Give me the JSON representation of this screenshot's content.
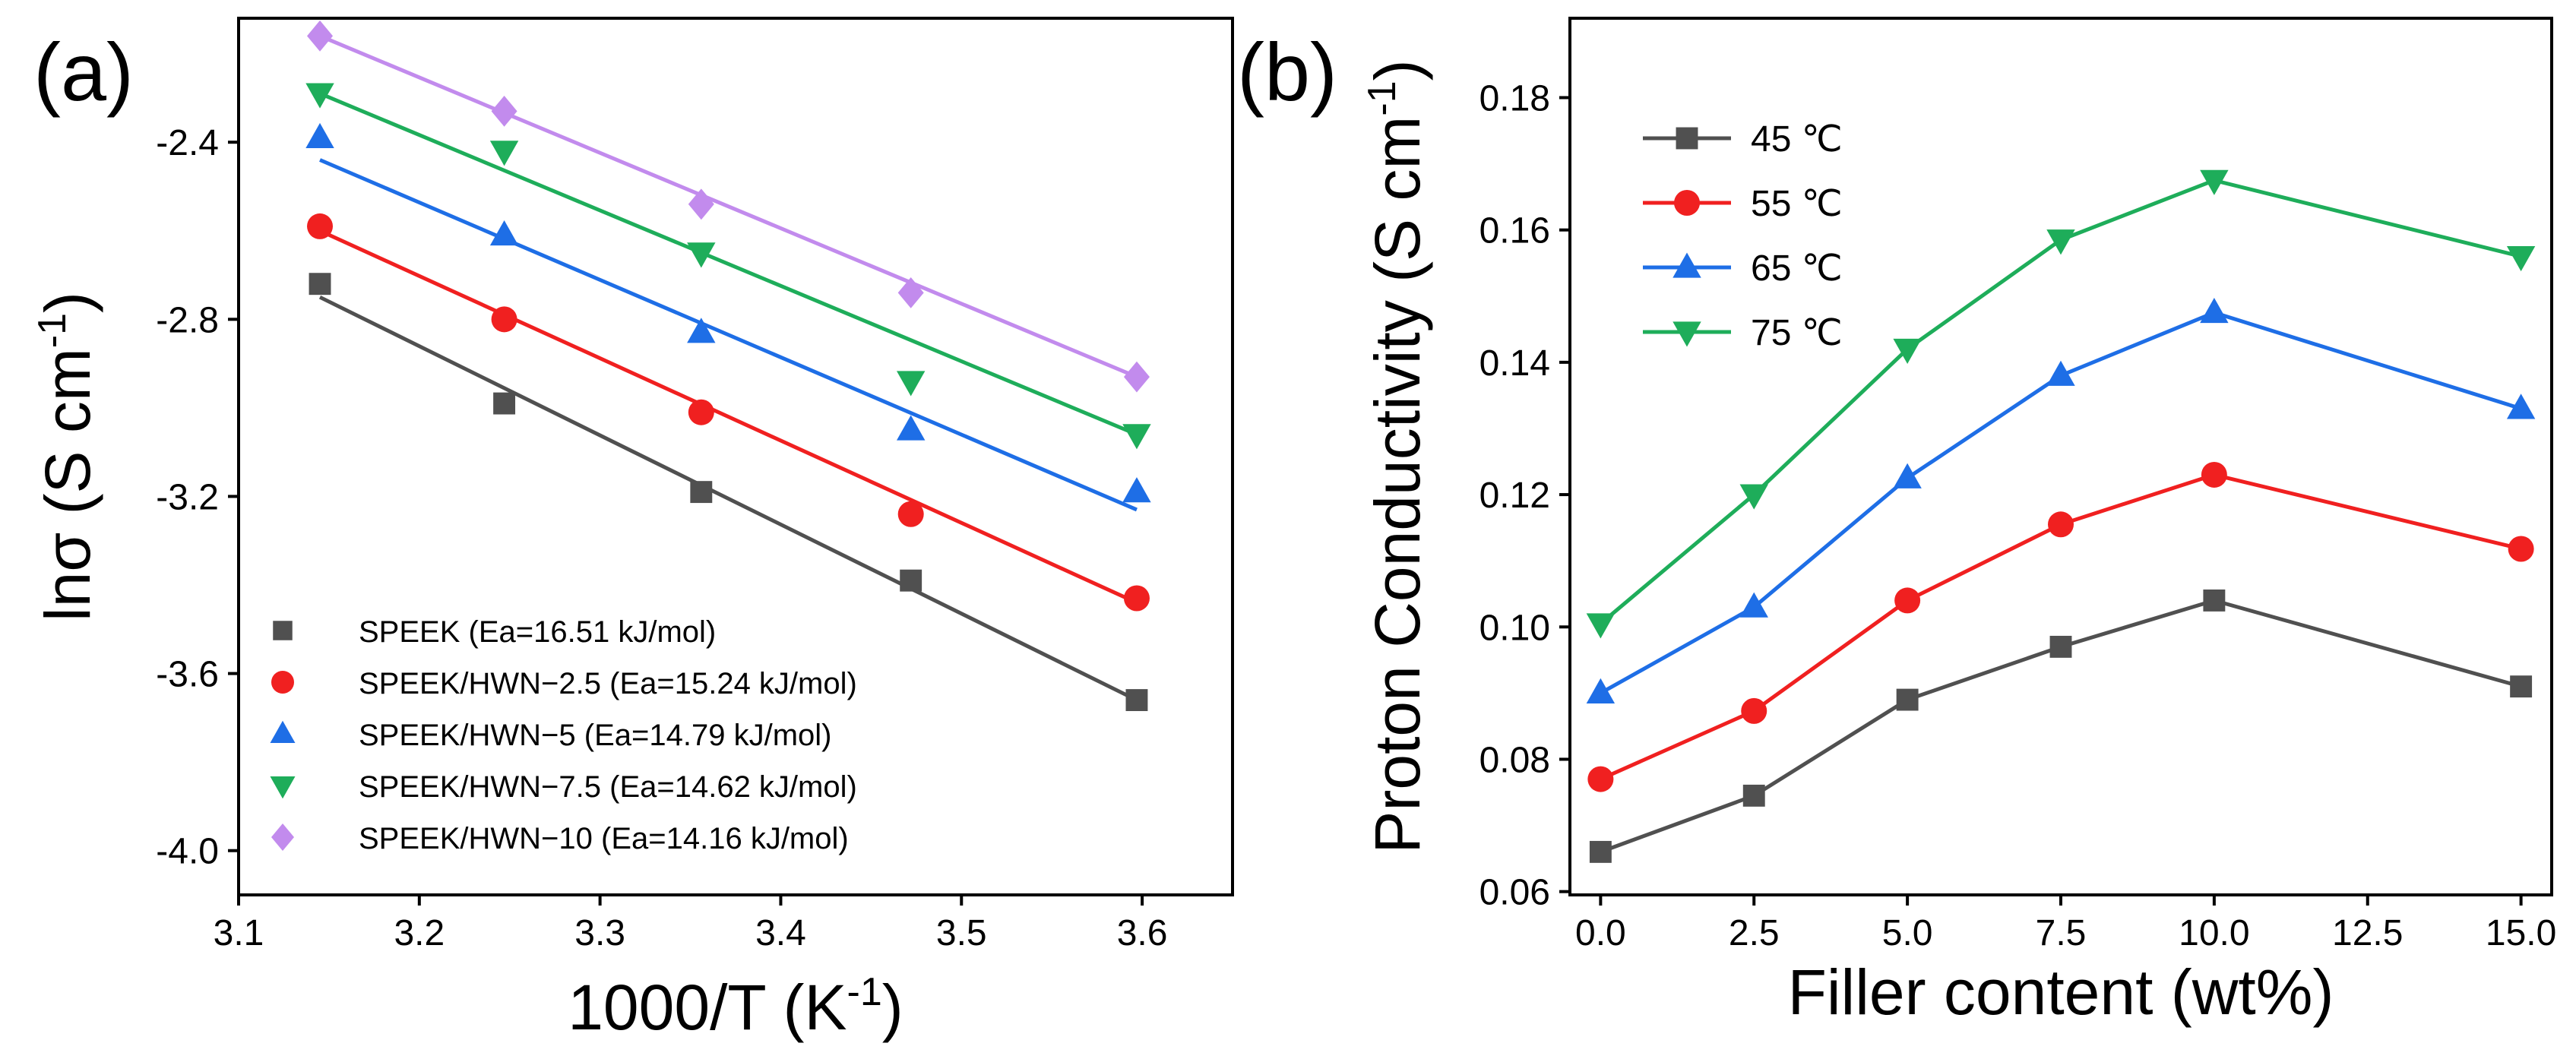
{
  "chart_data": [
    {
      "type": "scatter",
      "panel_label": "(a)",
      "title": "",
      "xlabel": {
        "main": "1000/T (K",
        "sup": "-1",
        "end": ")"
      },
      "ylabel": {
        "main": "lnσ (S cm",
        "sup": "-1",
        "end": ")"
      },
      "xlim": [
        3.1,
        3.65
      ],
      "ylim": [
        -4.1,
        -2.12
      ],
      "xticks": [
        3.1,
        3.2,
        3.3,
        3.4,
        3.5,
        3.6
      ],
      "xtick_labels": [
        "3.1",
        "3.2",
        "3.3",
        "3.4",
        "3.5",
        "3.6"
      ],
      "yticks": [
        -4.0,
        -3.6,
        -3.2,
        -2.8,
        -2.4
      ],
      "ytick_labels": [
        "-4.0",
        "-3.6",
        "-3.2",
        "-2.8",
        "-2.4"
      ],
      "legend_position": "bottom-left",
      "x": [
        3.145,
        3.247,
        3.356,
        3.472,
        3.597
      ],
      "series": [
        {
          "name": "SPEEK (Ea=16.51 kJ/mol)",
          "color": "#505050",
          "marker": "square",
          "values": [
            -2.72,
            -2.99,
            -3.19,
            -3.39,
            -3.66
          ],
          "fit": [
            -2.75,
            -3.66
          ]
        },
        {
          "name": "SPEEK/HWN−2.5 (Ea=15.24 kJ/mol)",
          "color": "#f02020",
          "marker": "circle",
          "values": [
            -2.59,
            -2.8,
            -3.01,
            -3.24,
            -3.43
          ],
          "fit": [
            -2.6,
            -3.44
          ]
        },
        {
          "name": "SPEEK/HWN−5 (Ea=14.79 kJ/mol)",
          "color": "#1e6ee6",
          "marker": "triangle-up",
          "values": [
            -2.39,
            -2.61,
            -2.83,
            -3.05,
            -3.19
          ],
          "fit": [
            -2.44,
            -3.23
          ]
        },
        {
          "name": "SPEEK/HWN−7.5 (Ea=14.62 kJ/mol)",
          "color": "#1ead5a",
          "marker": "triangle-down",
          "values": [
            -2.29,
            -2.42,
            -2.65,
            -2.94,
            -3.06
          ],
          "fit": [
            -2.29,
            -3.06
          ]
        },
        {
          "name": "SPEEK/HWN−10 (Ea=14.16 kJ/mol)",
          "color": "#c28bed",
          "marker": "diamond",
          "values": [
            -2.16,
            -2.33,
            -2.54,
            -2.74,
            -2.93
          ],
          "fit": [
            -2.16,
            -2.93
          ]
        }
      ]
    },
    {
      "type": "line",
      "panel_label": "(b)",
      "title": "",
      "xlabel": {
        "main": "Filler content (wt%)",
        "sup": "",
        "end": ""
      },
      "ylabel": {
        "main": "Proton Conductivity  (S cm",
        "sup": "-1",
        "end": ")"
      },
      "xlim": [
        -0.5,
        15.5
      ],
      "ylim": [
        0.0595,
        0.192
      ],
      "xticks": [
        0,
        2.5,
        5,
        7.5,
        10,
        12.5,
        15
      ],
      "xtick_labels": [
        "0.0",
        "2.5",
        "5.0",
        "7.5",
        "10.0",
        "12.5",
        "15.0"
      ],
      "yticks": [
        0.06,
        0.08,
        0.1,
        0.12,
        0.14,
        0.16,
        0.18
      ],
      "ytick_labels": [
        "0.06",
        "0.08",
        "0.10",
        "0.12",
        "0.14",
        "0.16",
        "0.18"
      ],
      "legend_position": "top-left",
      "x": [
        0,
        2.5,
        5,
        7.5,
        10,
        15
      ],
      "series": [
        {
          "name": "45 ℃",
          "color": "#505050",
          "marker": "square",
          "values": [
            0.066,
            0.0745,
            0.089,
            0.097,
            0.104,
            0.091
          ]
        },
        {
          "name": "55 ℃",
          "color": "#f02020",
          "marker": "circle",
          "values": [
            0.077,
            0.0873,
            0.104,
            0.1155,
            0.123,
            0.1118
          ]
        },
        {
          "name": "65 ℃",
          "color": "#1e6ee6",
          "marker": "triangle-up",
          "values": [
            0.09,
            0.103,
            0.1225,
            0.138,
            0.1475,
            0.133
          ]
        },
        {
          "name": "75 ℃",
          "color": "#1ead5a",
          "marker": "triangle-down",
          "values": [
            0.1005,
            0.12,
            0.142,
            0.1585,
            0.1675,
            0.156
          ]
        }
      ]
    }
  ]
}
